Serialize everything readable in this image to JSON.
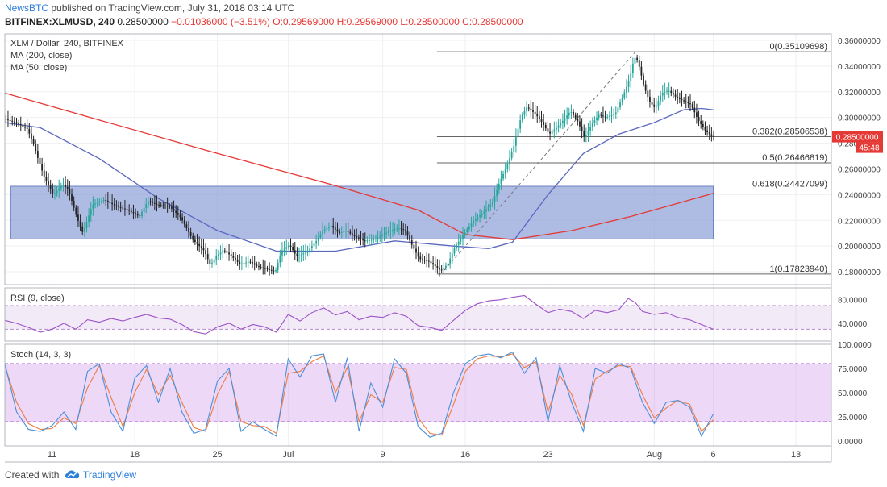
{
  "header": {
    "publisher": "NewsBTC",
    "published_text": "published on TradingView.com, July 31, 2018 03:14 UTC",
    "symbol": "BITFINEX:XLMUSD, 240",
    "quote_last": "0.28500000",
    "quote_change": "−0.01036000 (−3.51%)",
    "ohlc": {
      "o": "O:0.29569000",
      "h": "H:0.29569000",
      "l": "L:0.28500000",
      "c": "C:0.28500000"
    }
  },
  "footer": {
    "created_with": "Created with",
    "brand": "TradingView"
  },
  "colors": {
    "up": "#26a69a",
    "down": "#222222",
    "ma200": "#e53935",
    "ma50": "#5b68c0",
    "zone": "#8c9ed6",
    "rsi": "#9c52c7",
    "stoch_k": "#4a90d9",
    "stoch_d": "#f07b3f",
    "last_price_bg": "#e53935",
    "fib": "#666666"
  },
  "chart_data": [
    {
      "type": "candlestick",
      "title": "XLM / Dollar, 240, BITFINEX",
      "legend": [
        "MA (200, close)",
        "MA (50, close)"
      ],
      "yaxis": {
        "range": [
          0.17,
          0.365
        ],
        "ticks": [
          "0.36000000",
          "0.34000000",
          "0.32000000",
          "0.30000000",
          "0.28000000",
          "0.26000000",
          "0.24000000",
          "0.22000000",
          "0.20000000",
          "0.18000000"
        ]
      },
      "xaxis": {
        "ticks": [
          {
            "label": "11",
            "day": 11
          },
          {
            "label": "18",
            "day": 18
          },
          {
            "label": "25",
            "day": 25
          },
          {
            "label": "Jul",
            "day": 31
          },
          {
            "label": "9",
            "day": 39
          },
          {
            "label": "16",
            "day": 46
          },
          {
            "label": "23",
            "day": 53
          },
          {
            "label": "Aug",
            "day": 62
          },
          {
            "label": "6",
            "day": 67
          },
          {
            "label": "13",
            "day": 74
          }
        ]
      },
      "x_start_day": 7.0,
      "price_path": [
        [
          7.0,
          0.299
        ],
        [
          8.0,
          0.296
        ],
        [
          9.0,
          0.291
        ],
        [
          9.5,
          0.28
        ],
        [
          10.0,
          0.265
        ],
        [
          10.5,
          0.252
        ],
        [
          11.2,
          0.24
        ],
        [
          12.0,
          0.248
        ],
        [
          12.5,
          0.243
        ],
        [
          13.2,
          0.222
        ],
        [
          13.7,
          0.21
        ],
        [
          14.5,
          0.232
        ],
        [
          15.5,
          0.236
        ],
        [
          16.5,
          0.231
        ],
        [
          17.5,
          0.228
        ],
        [
          18.5,
          0.223
        ],
        [
          19.2,
          0.235
        ],
        [
          20.0,
          0.232
        ],
        [
          21.0,
          0.231
        ],
        [
          22.0,
          0.222
        ],
        [
          23.0,
          0.205
        ],
        [
          24.0,
          0.196
        ],
        [
          24.5,
          0.185
        ],
        [
          25.0,
          0.192
        ],
        [
          25.6,
          0.197
        ],
        [
          26.3,
          0.192
        ],
        [
          27.0,
          0.186
        ],
        [
          27.8,
          0.188
        ],
        [
          28.5,
          0.184
        ],
        [
          29.3,
          0.182
        ],
        [
          30.0,
          0.18
        ],
        [
          30.5,
          0.196
        ],
        [
          31.2,
          0.201
        ],
        [
          31.8,
          0.192
        ],
        [
          32.6,
          0.195
        ],
        [
          33.4,
          0.203
        ],
        [
          34.0,
          0.212
        ],
        [
          34.7,
          0.216
        ],
        [
          35.4,
          0.21
        ],
        [
          36.0,
          0.212
        ],
        [
          36.8,
          0.207
        ],
        [
          37.5,
          0.204
        ],
        [
          38.3,
          0.205
        ],
        [
          39.0,
          0.208
        ],
        [
          39.7,
          0.212
        ],
        [
          40.4,
          0.214
        ],
        [
          41.0,
          0.212
        ],
        [
          41.5,
          0.202
        ],
        [
          42.2,
          0.19
        ],
        [
          43.0,
          0.188
        ],
        [
          43.6,
          0.184
        ],
        [
          44.0,
          0.181
        ],
        [
          44.6,
          0.186
        ],
        [
          45.2,
          0.199
        ],
        [
          46.0,
          0.21
        ],
        [
          46.8,
          0.22
        ],
        [
          47.6,
          0.226
        ],
        [
          48.4,
          0.234
        ],
        [
          49.0,
          0.25
        ],
        [
          49.6,
          0.262
        ],
        [
          50.2,
          0.278
        ],
        [
          50.8,
          0.3
        ],
        [
          51.3,
          0.308
        ],
        [
          52.0,
          0.303
        ],
        [
          52.6,
          0.296
        ],
        [
          53.2,
          0.287
        ],
        [
          53.8,
          0.292
        ],
        [
          54.4,
          0.298
        ],
        [
          55.0,
          0.305
        ],
        [
          55.6,
          0.297
        ],
        [
          56.2,
          0.284
        ],
        [
          56.8,
          0.295
        ],
        [
          57.4,
          0.302
        ],
        [
          58.0,
          0.3
        ],
        [
          58.8,
          0.303
        ],
        [
          59.5,
          0.318
        ],
        [
          60.0,
          0.33
        ],
        [
          60.4,
          0.347
        ],
        [
          60.7,
          0.344
        ],
        [
          61.2,
          0.325
        ],
        [
          61.7,
          0.312
        ],
        [
          62.2,
          0.307
        ],
        [
          62.7,
          0.319
        ],
        [
          63.3,
          0.321
        ],
        [
          63.9,
          0.316
        ],
        [
          64.5,
          0.313
        ],
        [
          65.2,
          0.31
        ],
        [
          65.8,
          0.298
        ],
        [
          66.4,
          0.29
        ],
        [
          67.0,
          0.285
        ]
      ],
      "ma200_path": [
        [
          7.0,
          0.319
        ],
        [
          15.0,
          0.298
        ],
        [
          25.0,
          0.272
        ],
        [
          35.0,
          0.247
        ],
        [
          42.0,
          0.228
        ],
        [
          46.0,
          0.209
        ],
        [
          50.0,
          0.205
        ],
        [
          55.0,
          0.212
        ],
        [
          60.0,
          0.223
        ],
        [
          67.0,
          0.241
        ]
      ],
      "ma50_path": [
        [
          7.0,
          0.296
        ],
        [
          10.0,
          0.292
        ],
        [
          15.0,
          0.268
        ],
        [
          20.0,
          0.237
        ],
        [
          25.0,
          0.212
        ],
        [
          30.0,
          0.196
        ],
        [
          35.0,
          0.196
        ],
        [
          40.0,
          0.204
        ],
        [
          45.0,
          0.2
        ],
        [
          48.0,
          0.198
        ],
        [
          50.0,
          0.203
        ],
        [
          53.0,
          0.24
        ],
        [
          56.0,
          0.272
        ],
        [
          59.0,
          0.287
        ],
        [
          62.0,
          0.296
        ],
        [
          64.5,
          0.306
        ],
        [
          66.0,
          0.307
        ],
        [
          67.0,
          0.306
        ]
      ],
      "consolidation_zone": {
        "x_from_day": 7.5,
        "x_to_day": 67.0,
        "y_low": 0.2055,
        "y_high": 0.2465
      },
      "fib_levels": [
        {
          "label": "0(0.35109698)",
          "value": 0.35109698
        },
        {
          "label": "0.382(0.28506538)",
          "value": 0.28506538
        },
        {
          "label": "0.5(0.26466819)",
          "value": 0.26466819
        },
        {
          "label": "0.618(0.24427099)",
          "value": 0.24427099
        },
        {
          "label": "1(0.17823940)",
          "value": 0.1782394
        }
      ],
      "fib_x_from_day": 43.6,
      "fib_anchor_low": [
        44.2,
        0.181
      ],
      "fib_anchor_high": [
        60.4,
        0.351
      ],
      "last_price": {
        "value": 0.285,
        "label": "0.28500000",
        "countdown": "45:48"
      }
    },
    {
      "type": "line",
      "title": "RSI (9, close)",
      "yaxis": {
        "range": [
          10,
          100
        ],
        "ticks": [
          "80.0000",
          "40.0000"
        ]
      },
      "band": [
        30,
        70
      ],
      "values_path": [
        [
          7.0,
          45
        ],
        [
          8.0,
          40
        ],
        [
          9.0,
          33
        ],
        [
          10.0,
          25
        ],
        [
          11.0,
          30
        ],
        [
          12.0,
          40
        ],
        [
          13.0,
          30
        ],
        [
          14.0,
          46
        ],
        [
          15.0,
          42
        ],
        [
          16.0,
          48
        ],
        [
          17.0,
          44
        ],
        [
          18.0,
          50
        ],
        [
          19.0,
          55
        ],
        [
          20.0,
          49
        ],
        [
          21.0,
          47
        ],
        [
          22.0,
          38
        ],
        [
          23.0,
          26
        ],
        [
          24.0,
          22
        ],
        [
          25.0,
          34
        ],
        [
          26.0,
          40
        ],
        [
          27.0,
          30
        ],
        [
          28.0,
          38
        ],
        [
          29.0,
          34
        ],
        [
          30.0,
          25
        ],
        [
          31.0,
          55
        ],
        [
          32.0,
          44
        ],
        [
          33.0,
          58
        ],
        [
          34.0,
          66
        ],
        [
          35.0,
          54
        ],
        [
          36.0,
          60
        ],
        [
          37.0,
          46
        ],
        [
          38.0,
          52
        ],
        [
          39.0,
          50
        ],
        [
          40.0,
          58
        ],
        [
          41.0,
          52
        ],
        [
          42.0,
          36
        ],
        [
          43.0,
          33
        ],
        [
          44.0,
          28
        ],
        [
          45.0,
          45
        ],
        [
          46.0,
          62
        ],
        [
          47.0,
          73
        ],
        [
          48.0,
          78
        ],
        [
          49.0,
          80
        ],
        [
          50.0,
          84
        ],
        [
          51.0,
          87
        ],
        [
          52.0,
          72
        ],
        [
          53.0,
          58
        ],
        [
          54.0,
          64
        ],
        [
          55.0,
          60
        ],
        [
          56.0,
          48
        ],
        [
          57.0,
          62
        ],
        [
          58.0,
          58
        ],
        [
          59.0,
          63
        ],
        [
          59.8,
          82
        ],
        [
          60.4,
          75
        ],
        [
          61.0,
          60
        ],
        [
          62.0,
          55
        ],
        [
          63.0,
          58
        ],
        [
          64.0,
          50
        ],
        [
          65.0,
          46
        ],
        [
          66.0,
          38
        ],
        [
          67.0,
          30
        ]
      ]
    },
    {
      "type": "line",
      "title": "Stoch (14, 3, 3)",
      "yaxis": {
        "range": [
          -5,
          100
        ],
        "ticks": [
          "100.0000",
          "75.0000",
          "50.0000",
          "25.0000",
          "0.0000"
        ]
      },
      "band": [
        20,
        80
      ],
      "k_path": [
        [
          7.0,
          80
        ],
        [
          8.0,
          30
        ],
        [
          9.0,
          12
        ],
        [
          10.0,
          10
        ],
        [
          11.0,
          16
        ],
        [
          12.0,
          30
        ],
        [
          13.0,
          12
        ],
        [
          14.0,
          72
        ],
        [
          15.0,
          80
        ],
        [
          16.0,
          30
        ],
        [
          17.0,
          10
        ],
        [
          18.0,
          65
        ],
        [
          19.0,
          78
        ],
        [
          20.0,
          40
        ],
        [
          21.0,
          75
        ],
        [
          22.0,
          30
        ],
        [
          23.0,
          8
        ],
        [
          24.0,
          12
        ],
        [
          25.0,
          62
        ],
        [
          26.0,
          75
        ],
        [
          27.0,
          10
        ],
        [
          28.0,
          20
        ],
        [
          29.0,
          12
        ],
        [
          30.0,
          5
        ],
        [
          31.0,
          85
        ],
        [
          32.0,
          66
        ],
        [
          33.0,
          88
        ],
        [
          34.0,
          90
        ],
        [
          35.0,
          40
        ],
        [
          36.0,
          86
        ],
        [
          37.0,
          10
        ],
        [
          38.0,
          60
        ],
        [
          39.0,
          35
        ],
        [
          40.0,
          85
        ],
        [
          41.0,
          70
        ],
        [
          42.0,
          15
        ],
        [
          43.0,
          4
        ],
        [
          44.0,
          8
        ],
        [
          45.0,
          50
        ],
        [
          46.0,
          80
        ],
        [
          47.0,
          88
        ],
        [
          48.0,
          90
        ],
        [
          49.0,
          86
        ],
        [
          50.0,
          92
        ],
        [
          51.0,
          70
        ],
        [
          52.0,
          86
        ],
        [
          53.0,
          20
        ],
        [
          54.0,
          78
        ],
        [
          55.0,
          40
        ],
        [
          56.0,
          10
        ],
        [
          57.0,
          75
        ],
        [
          58.0,
          70
        ],
        [
          59.0,
          80
        ],
        [
          60.0,
          75
        ],
        [
          61.0,
          40
        ],
        [
          62.0,
          18
        ],
        [
          63.0,
          40
        ],
        [
          64.0,
          42
        ],
        [
          65.0,
          35
        ],
        [
          66.0,
          5
        ],
        [
          67.0,
          28
        ]
      ],
      "d_path": [
        [
          7.0,
          78
        ],
        [
          8.0,
          40
        ],
        [
          9.0,
          18
        ],
        [
          10.0,
          12
        ],
        [
          11.0,
          13
        ],
        [
          12.0,
          24
        ],
        [
          13.0,
          18
        ],
        [
          14.0,
          55
        ],
        [
          15.0,
          78
        ],
        [
          16.0,
          45
        ],
        [
          17.0,
          15
        ],
        [
          18.0,
          50
        ],
        [
          19.0,
          74
        ],
        [
          20.0,
          48
        ],
        [
          21.0,
          68
        ],
        [
          22.0,
          40
        ],
        [
          23.0,
          14
        ],
        [
          24.0,
          10
        ],
        [
          25.0,
          48
        ],
        [
          26.0,
          72
        ],
        [
          27.0,
          20
        ],
        [
          28.0,
          16
        ],
        [
          29.0,
          15
        ],
        [
          30.0,
          8
        ],
        [
          31.0,
          70
        ],
        [
          32.0,
          72
        ],
        [
          33.0,
          82
        ],
        [
          34.0,
          88
        ],
        [
          35.0,
          50
        ],
        [
          36.0,
          76
        ],
        [
          37.0,
          20
        ],
        [
          38.0,
          48
        ],
        [
          39.0,
          40
        ],
        [
          40.0,
          76
        ],
        [
          41.0,
          74
        ],
        [
          42.0,
          24
        ],
        [
          43.0,
          8
        ],
        [
          44.0,
          6
        ],
        [
          45.0,
          38
        ],
        [
          46.0,
          72
        ],
        [
          47.0,
          85
        ],
        [
          48.0,
          88
        ],
        [
          49.0,
          87
        ],
        [
          50.0,
          90
        ],
        [
          51.0,
          76
        ],
        [
          52.0,
          82
        ],
        [
          53.0,
          30
        ],
        [
          54.0,
          68
        ],
        [
          55.0,
          48
        ],
        [
          56.0,
          16
        ],
        [
          57.0,
          64
        ],
        [
          58.0,
          72
        ],
        [
          59.0,
          78
        ],
        [
          60.0,
          77
        ],
        [
          61.0,
          48
        ],
        [
          62.0,
          24
        ],
        [
          63.0,
          34
        ],
        [
          64.0,
          42
        ],
        [
          65.0,
          38
        ],
        [
          66.0,
          10
        ],
        [
          67.0,
          22
        ]
      ]
    }
  ]
}
